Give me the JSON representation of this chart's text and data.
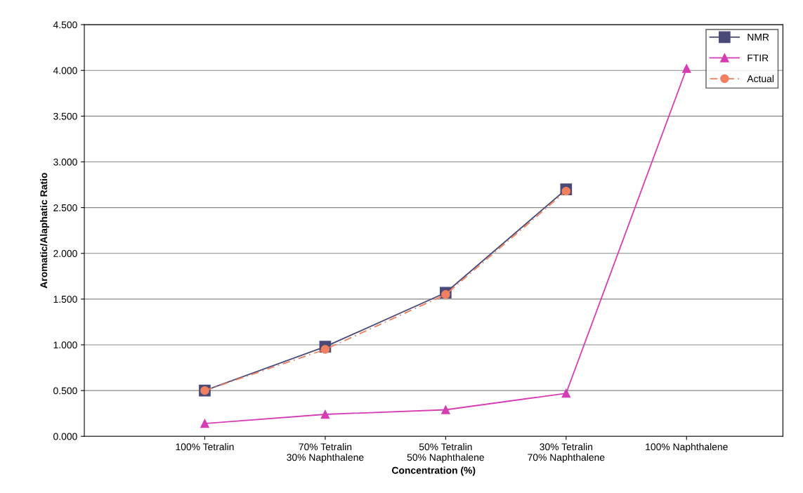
{
  "chart_data": {
    "type": "line",
    "xlabel": "Concentration (%)",
    "ylabel": "Aromatic/Alaphatic Ratio",
    "categories": [
      "100% Tetralin",
      "70% Tetralin\n30% Naphthalene",
      "50% Tetralin\n50% Naphthalene",
      "30% Tetralin\n70% Naphthalene",
      "100% Naphthalene"
    ],
    "series": [
      {
        "name": "NMR",
        "color": "#4a4a78",
        "marker": "square",
        "line_style": "solid",
        "values": [
          0.5,
          0.98,
          1.57,
          2.7,
          null
        ]
      },
      {
        "name": "FTIR",
        "color": "#d63cb4",
        "marker": "triangle",
        "line_style": "solid",
        "values": [
          0.14,
          0.24,
          0.29,
          0.47,
          4.02
        ]
      },
      {
        "name": "Actual",
        "color": "#f08060",
        "marker": "circle",
        "line_style": "dashed",
        "values": [
          0.5,
          0.95,
          1.55,
          2.68,
          null
        ]
      }
    ],
    "ylim": [
      0,
      4.5
    ],
    "yticks": [
      {
        "value": 0,
        "label": "0.000"
      },
      {
        "value": 0.5,
        "label": "0.500"
      },
      {
        "value": 1,
        "label": "1.000"
      },
      {
        "value": 1.5,
        "label": "1.500"
      },
      {
        "value": 2,
        "label": "2.000"
      },
      {
        "value": 2.5,
        "label": "2.500"
      },
      {
        "value": 3,
        "label": "3.000"
      },
      {
        "value": 3.5,
        "label": "3.500"
      },
      {
        "value": 4,
        "label": "4.000"
      },
      {
        "value": 4.5,
        "label": "4.500"
      }
    ],
    "grid": "y",
    "legend": "top right"
  }
}
